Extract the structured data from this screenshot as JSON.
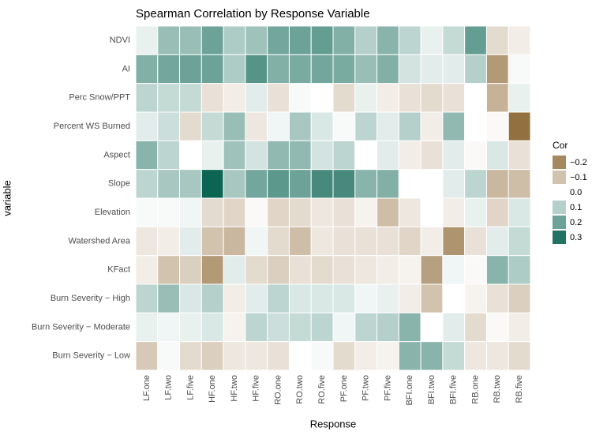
{
  "chart_data": {
    "type": "heatmap",
    "title": "Spearman Correlation by Response Variable",
    "x_label": "Response",
    "y_label": "variable",
    "legend_title": "Cor",
    "categories": [
      "LF.one",
      "LF.two",
      "LF.five",
      "HF.one",
      "HF.two",
      "HF.five",
      "RO.one",
      "RO.two",
      "RO.five",
      "PF.one",
      "PF.two",
      "PF.five",
      "BFI.one",
      "BFI.two",
      "BFI.five",
      "RB.one",
      "RB.two",
      "RB.five"
    ],
    "rows": [
      "NDVI",
      "AI",
      "Perc Snow/PPT",
      "Percent WS Burned",
      "Aspect",
      "Slope",
      "Elevation",
      "Watershed Area",
      "KFact",
      "Burn Severity − High",
      "Burn Severity − Moderate",
      "Burn Severity − Low"
    ],
    "values": [
      [
        0.03,
        0.14,
        0.14,
        0.2,
        0.11,
        0.13,
        0.19,
        0.2,
        0.21,
        0.17,
        0.1,
        0.16,
        0.09,
        0.03,
        0.08,
        0.21,
        -0.06,
        -0.03
      ],
      [
        0.17,
        0.19,
        0.2,
        0.2,
        0.11,
        0.23,
        0.17,
        0.18,
        0.19,
        0.18,
        0.14,
        0.17,
        0.06,
        0.04,
        0.04,
        0.1,
        -0.17,
        0.01
      ],
      [
        0.09,
        0.08,
        0.08,
        -0.05,
        -0.03,
        0.04,
        -0.05,
        0.01,
        0,
        -0.06,
        0.03,
        -0.03,
        -0.05,
        -0.06,
        -0.05,
        0,
        -0.13,
        0.03
      ],
      [
        0.04,
        0.07,
        -0.06,
        0.08,
        0.14,
        -0.04,
        0.02,
        0.12,
        0.05,
        0.01,
        0.09,
        0.04,
        0.1,
        -0.03,
        0.15,
        0,
        -0.01,
        -0.24
      ],
      [
        0.16,
        0.09,
        0,
        0.03,
        0.13,
        0.06,
        0.15,
        0.15,
        0.06,
        0.09,
        0,
        0.04,
        -0.03,
        -0.05,
        0.04,
        -0.01,
        0.05,
        -0.05
      ],
      [
        0.09,
        0.12,
        0.12,
        0.33,
        0.12,
        0.19,
        0.22,
        0.2,
        0.25,
        0.25,
        0.16,
        0.17,
        0,
        0,
        0.04,
        0.09,
        -0.12,
        -0.11
      ],
      [
        0.01,
        0.01,
        0.02,
        -0.06,
        -0.07,
        -0.01,
        -0.07,
        -0.06,
        -0.04,
        -0.05,
        -0.02,
        -0.11,
        -0.04,
        0,
        -0.03,
        0.03,
        -0.07,
        0.05
      ],
      [
        -0.04,
        -0.03,
        0.04,
        -0.1,
        -0.12,
        0.02,
        -0.06,
        -0.11,
        -0.04,
        -0.05,
        -0.05,
        -0.05,
        -0.07,
        -0.03,
        -0.18,
        -0.05,
        0.04,
        0.08
      ],
      [
        -0.03,
        -0.1,
        -0.08,
        -0.17,
        0.04,
        -0.06,
        -0.08,
        -0.05,
        -0.06,
        -0.05,
        -0.04,
        -0.03,
        -0.02,
        -0.16,
        0.02,
        -0.01,
        0.16,
        0.11
      ],
      [
        0.09,
        0.14,
        0.05,
        0.1,
        -0.03,
        0.04,
        0.09,
        0.05,
        0.05,
        0.05,
        0.02,
        0.03,
        -0.03,
        -0.1,
        0,
        -0.02,
        -0.05,
        -0.08
      ],
      [
        0.03,
        0.02,
        0.03,
        0.05,
        -0.02,
        0.09,
        0.07,
        0.08,
        0.09,
        0.02,
        0.09,
        0.1,
        0.16,
        0,
        0.04,
        -0.06,
        -0.01,
        -0.03
      ],
      [
        -0.09,
        0.01,
        -0.06,
        -0.08,
        -0.04,
        -0.04,
        -0.05,
        0,
        0.01,
        -0.06,
        -0.03,
        -0.02,
        0.16,
        0.16,
        0.08,
        -0.04,
        -0.04,
        -0.06
      ]
    ],
    "color_low": "#8f6a37",
    "color_mid": "#ffffff",
    "color_high": "#0c6553",
    "color_limits": [
      -0.25,
      0.33
    ],
    "legend_ticks": [
      {
        "value": -0.2,
        "label": "−0.2"
      },
      {
        "value": -0.1,
        "label": "−0.1"
      },
      {
        "value": 0,
        "label": "0.0"
      },
      0.1,
      0.2,
      0.3
    ]
  }
}
